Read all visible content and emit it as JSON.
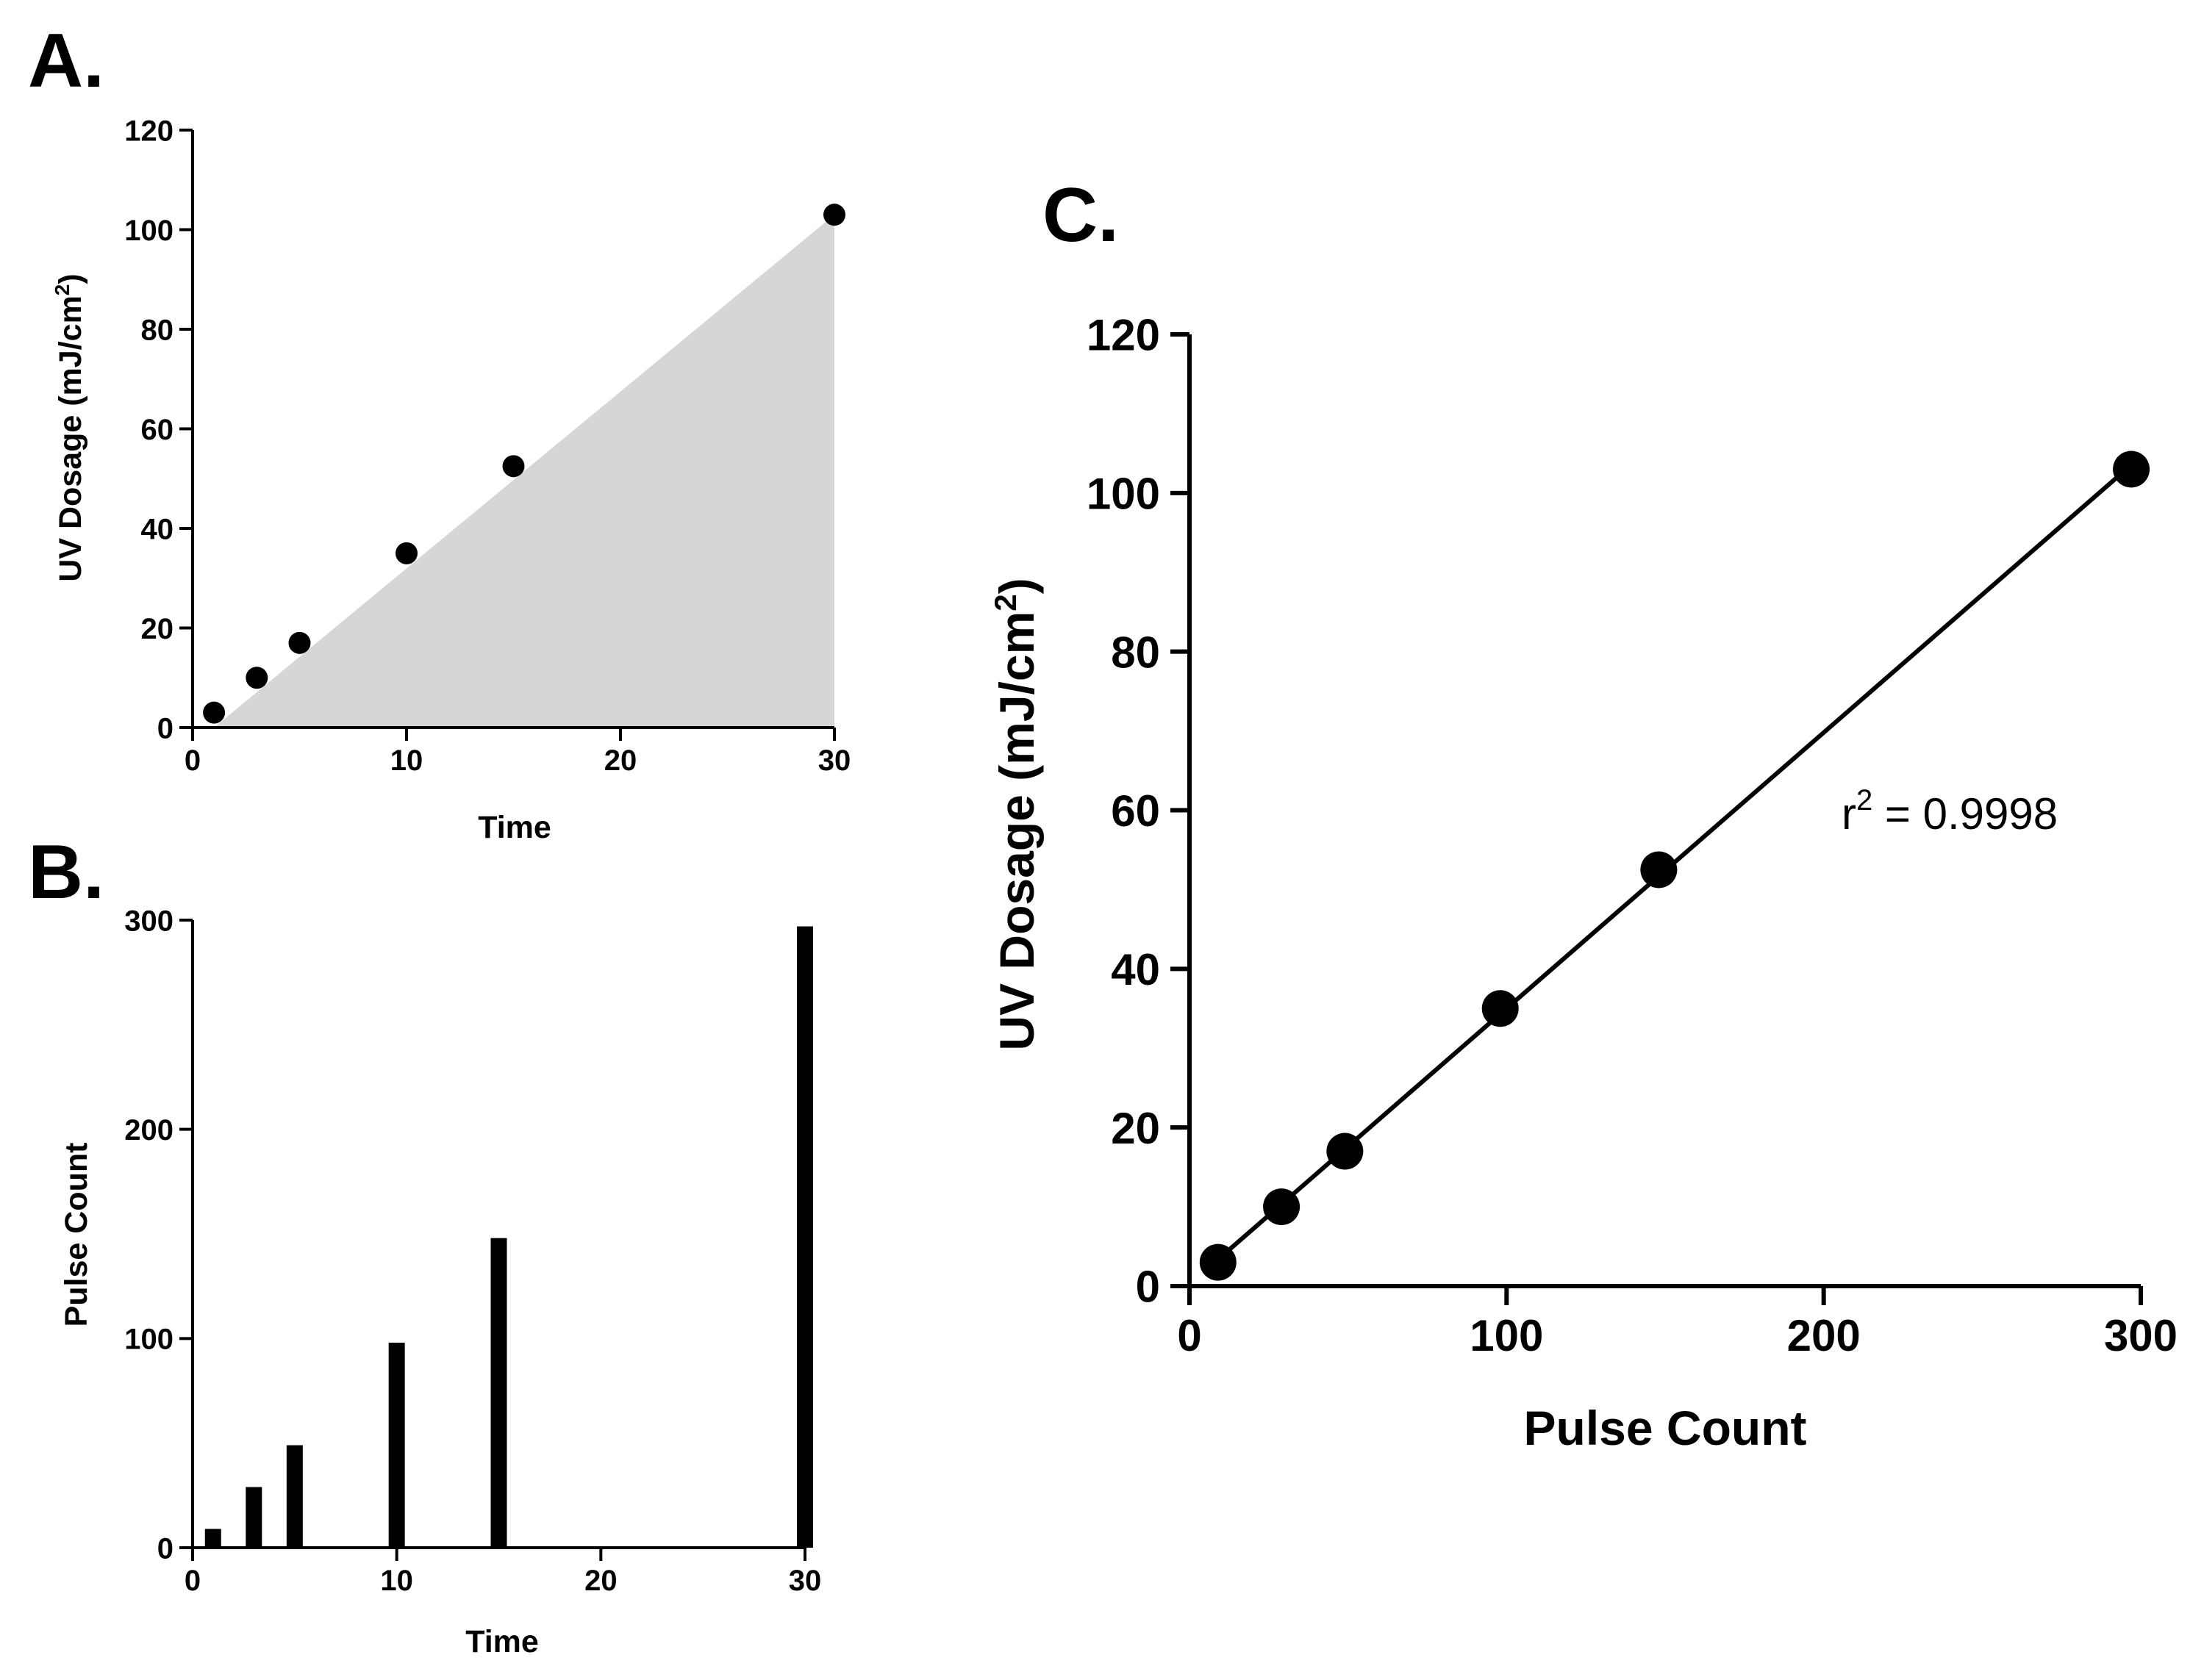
{
  "colors": {
    "ink": "#000000",
    "fill": "#d6d6d6",
    "background": "#ffffff"
  },
  "chart_data": [
    {
      "panel": "A.",
      "type": "scatter",
      "title": "",
      "xlabel": "Time",
      "ylabel_main": "UV Dosage (mJ/cm",
      "ylabel_sup": "2",
      "ylabel_tail": ")",
      "xlim": [
        0,
        30
      ],
      "ylim": [
        0,
        120
      ],
      "xticks": [
        0,
        10,
        20,
        30
      ],
      "yticks": [
        0,
        20,
        40,
        60,
        80,
        100,
        120
      ],
      "x": [
        1,
        3,
        5,
        10,
        15,
        30
      ],
      "y": [
        3,
        10,
        17,
        35,
        52.5,
        103
      ],
      "area_fill": true
    },
    {
      "panel": "B.",
      "type": "bar",
      "title": "",
      "xlabel": "Time",
      "ylabel": "Pulse Count",
      "xlim": [
        0,
        30
      ],
      "ylim": [
        0,
        300
      ],
      "xticks": [
        0,
        10,
        20,
        30
      ],
      "yticks": [
        0,
        100,
        200,
        300
      ],
      "x": [
        1,
        3,
        5,
        10,
        15,
        30
      ],
      "values": [
        9,
        29,
        49,
        98,
        148,
        297
      ]
    },
    {
      "panel": "C.",
      "type": "scatter",
      "title": "",
      "xlabel": "Pulse Count",
      "ylabel_main": "UV Dosage (mJ/cm",
      "ylabel_sup": "2",
      "ylabel_tail": ")",
      "xlim": [
        0,
        300
      ],
      "ylim": [
        0,
        120
      ],
      "xticks": [
        0,
        100,
        200,
        300
      ],
      "yticks": [
        0,
        20,
        40,
        60,
        80,
        100,
        120
      ],
      "x": [
        9,
        29,
        49,
        98,
        148,
        297
      ],
      "y": [
        3,
        10,
        17,
        35,
        52.5,
        103
      ],
      "fit_line": true,
      "annotation_main": "r",
      "annotation_sup": "2",
      "annotation_tail": " = 0.9998"
    }
  ]
}
